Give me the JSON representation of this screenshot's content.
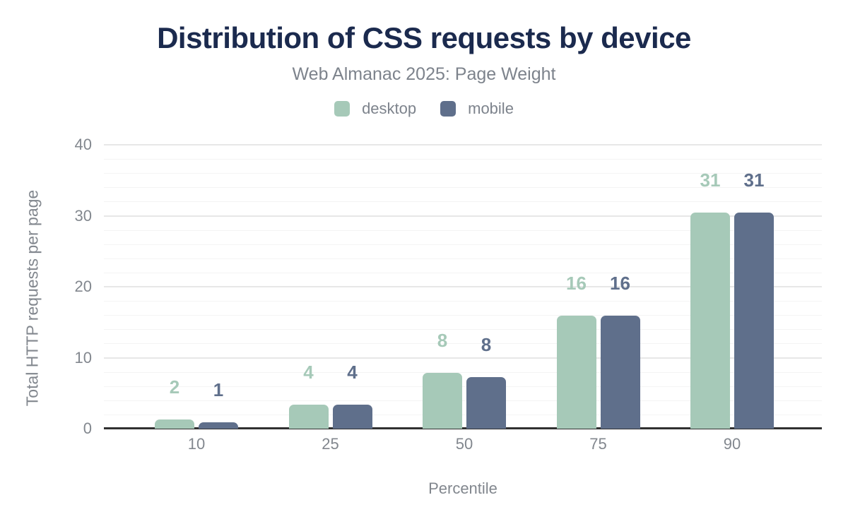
{
  "header": {
    "title": "Distribution of CSS requests by device",
    "subtitle": "Web Almanac 2025: Page Weight"
  },
  "legend": [
    {
      "label": "desktop",
      "color": "#a6c9b8"
    },
    {
      "label": "mobile",
      "color": "#5f6f8b"
    }
  ],
  "colors": {
    "title": "#1b2a4e",
    "subtitle": "#7d838c",
    "axis_text": "#82878e",
    "axis_line": "#303030",
    "grid_major": "#e7e7e7",
    "grid_minor": "#f4f4f4",
    "background": "#ffffff",
    "desktop": "#a6c9b8",
    "mobile": "#5f6f8b"
  },
  "chart_data": {
    "type": "bar",
    "title": "Distribution of CSS requests by device",
    "subtitle": "Web Almanac 2025: Page Weight",
    "categories": [
      "10",
      "25",
      "50",
      "75",
      "90"
    ],
    "series": [
      {
        "name": "desktop",
        "color": "#a6c9b8",
        "values": [
          2,
          4,
          8,
          16,
          31
        ],
        "bar_display_heights": [
          1.3,
          3.4,
          7.9,
          15.9,
          30.4
        ]
      },
      {
        "name": "mobile",
        "color": "#5f6f8b",
        "values": [
          1,
          4,
          8,
          16,
          31
        ],
        "bar_display_heights": [
          0.9,
          3.4,
          7.3,
          15.9,
          30.4
        ]
      }
    ],
    "xlabel": "Percentile",
    "ylabel": "Total HTTP requests per page",
    "ylim": [
      0,
      40
    ],
    "yticks": [
      0,
      10,
      20,
      30,
      40
    ],
    "minor_grid_step": 2,
    "grid": true,
    "legend_position": "top",
    "value_labels_shown": true
  }
}
